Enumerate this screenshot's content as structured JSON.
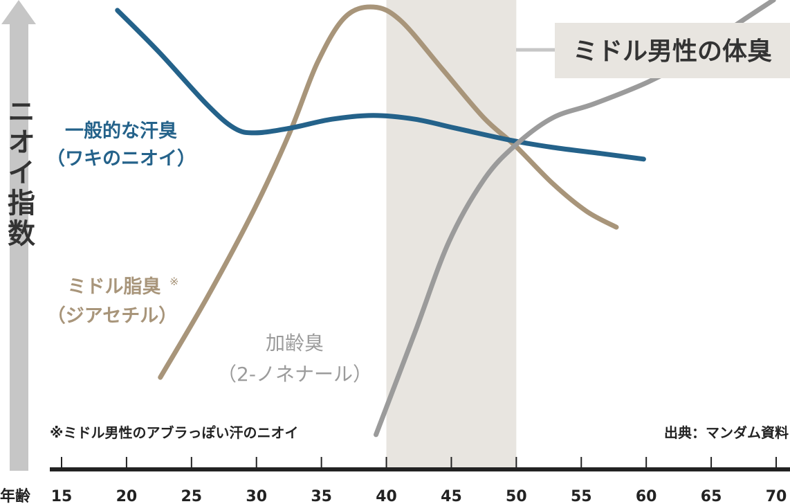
{
  "chart_data": {
    "type": "line",
    "title": "",
    "xlabel": "年齢",
    "ylabel": "ニオイ指数",
    "xlim": [
      15,
      70
    ],
    "ylim": [
      0,
      100
    ],
    "x_ticks": [
      "15",
      "20",
      "25",
      "30",
      "35",
      "40",
      "45",
      "50",
      "55",
      "60",
      "65",
      "70"
    ],
    "grid": false,
    "highlight_band": {
      "x": [
        40,
        50
      ],
      "label": "ミドル男性の体臭",
      "color": "#e8e5e0"
    },
    "series": [
      {
        "name": "一般的な汗臭（ワキのニオイ）",
        "color": "#24628a",
        "points": [
          [
            19.3,
            97.8
          ],
          [
            22.5,
            88.9
          ],
          [
            26.2,
            77.7
          ],
          [
            28.3,
            72.7
          ],
          [
            29.9,
            71.7
          ],
          [
            32.6,
            72.7
          ],
          [
            35.8,
            74.6
          ],
          [
            39.0,
            75.4
          ],
          [
            42.2,
            74.6
          ],
          [
            45.3,
            72.7
          ],
          [
            49.6,
            70.1
          ],
          [
            52.8,
            68.6
          ],
          [
            56.5,
            67.3
          ],
          [
            59.8,
            66.1
          ]
        ]
      },
      {
        "name": "ミドル脂臭※（ジアセチル）",
        "color": "#a8957a",
        "points": [
          [
            22.6,
            19.6
          ],
          [
            26.2,
            36.6
          ],
          [
            29.9,
            55.8
          ],
          [
            32.6,
            72.0
          ],
          [
            34.7,
            86.7
          ],
          [
            36.8,
            96.3
          ],
          [
            39.0,
            98.5
          ],
          [
            41.1,
            95.6
          ],
          [
            44.3,
            85.3
          ],
          [
            47.5,
            74.9
          ],
          [
            49.9,
            69.0
          ],
          [
            52.8,
            60.9
          ],
          [
            55.4,
            55.0
          ],
          [
            57.7,
            51.6
          ]
        ]
      },
      {
        "name": "加齢臭（2-ノネナール）",
        "color": "#9b9b9b",
        "points": [
          [
            39.2,
            7.4
          ],
          [
            42.2,
            29.2
          ],
          [
            44.8,
            48.4
          ],
          [
            47.5,
            61.7
          ],
          [
            49.9,
            69.0
          ],
          [
            52.8,
            74.9
          ],
          [
            56.0,
            77.9
          ],
          [
            60.2,
            82.6
          ],
          [
            63.4,
            87.5
          ],
          [
            66.6,
            94.1
          ],
          [
            69.8,
            100
          ]
        ]
      }
    ],
    "labels": {
      "blue_line1": "一般的な汗臭",
      "blue_line2": "（ワキのニオイ）",
      "tan_line1": "ミドル脂臭",
      "tan_mark": "※",
      "tan_line2": "（ジアセチル）",
      "gray_line1": "加齢臭",
      "gray_line2": "（2-ノネナール）"
    },
    "footnote": "※ミドル男性のアブラっぽい汗のニオイ",
    "source": "出典：マンダム資料"
  }
}
